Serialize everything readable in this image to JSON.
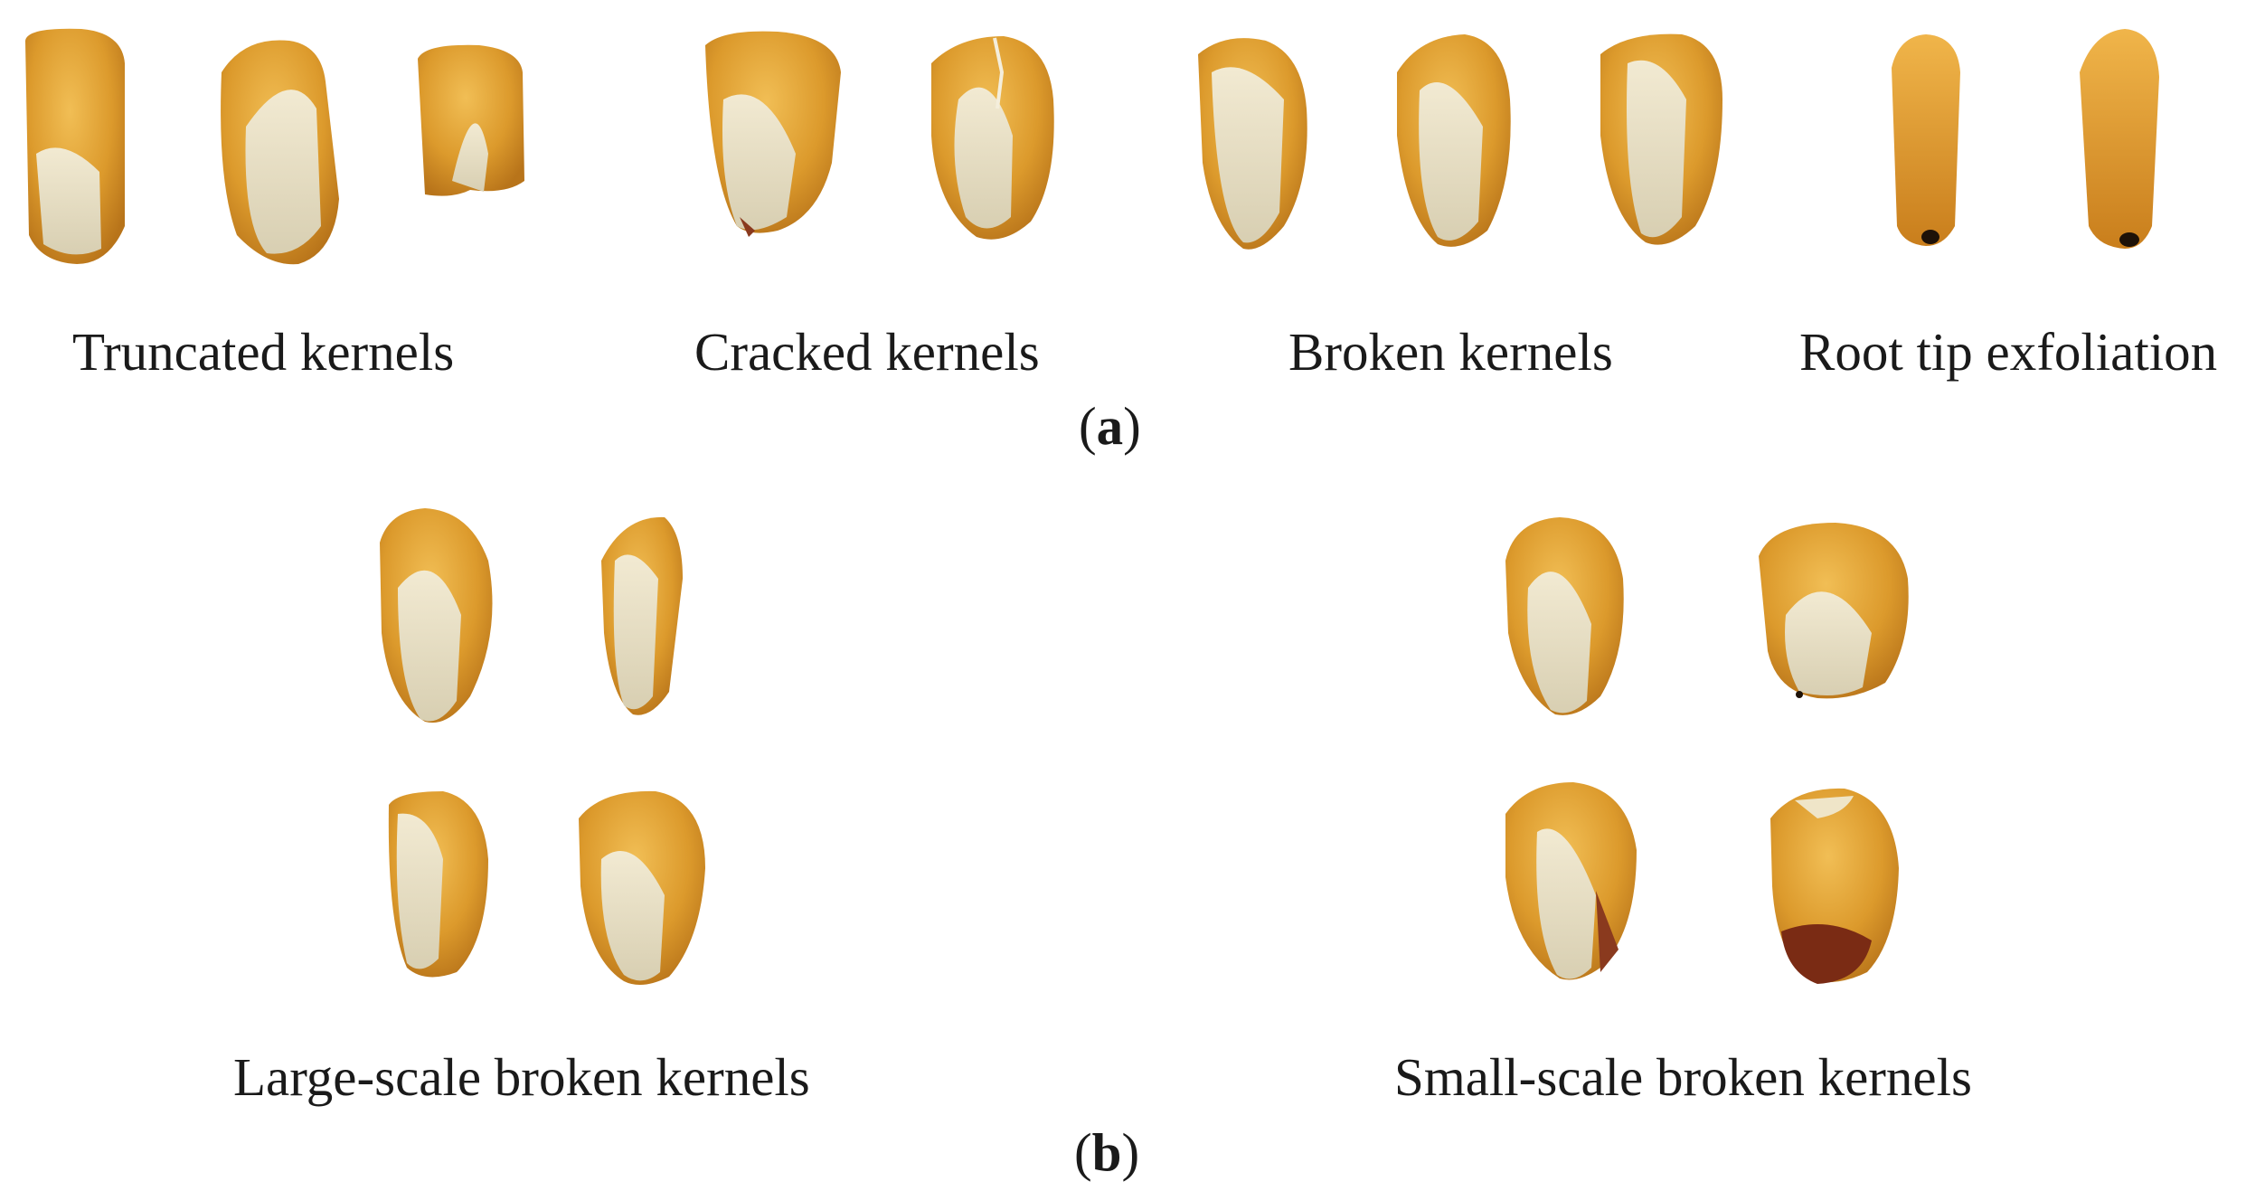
{
  "figure": {
    "panel_a": {
      "tag_open": "(",
      "tag_letter": "a",
      "tag_close": ")",
      "categories": [
        {
          "label": "Truncated kernels",
          "kernel_count": 3
        },
        {
          "label": "Cracked kernels",
          "kernel_count": 2
        },
        {
          "label": "Broken kernels",
          "kernel_count": 3
        },
        {
          "label": "Root tip exfoliation",
          "kernel_count": 2
        }
      ]
    },
    "panel_b": {
      "tag_open": "(",
      "tag_letter": "b",
      "tag_close": ")",
      "categories": [
        {
          "label": "Large-scale broken kernels",
          "kernel_count": 4
        },
        {
          "label": "Small-scale broken kernels",
          "kernel_count": 4
        }
      ]
    }
  },
  "colors": {
    "background": "#ffffff",
    "kernel_dark": "#c9861a",
    "kernel_light": "#e7ad3c",
    "endosperm": "#eae3cc",
    "damage_tip": "#7a2b14"
  }
}
